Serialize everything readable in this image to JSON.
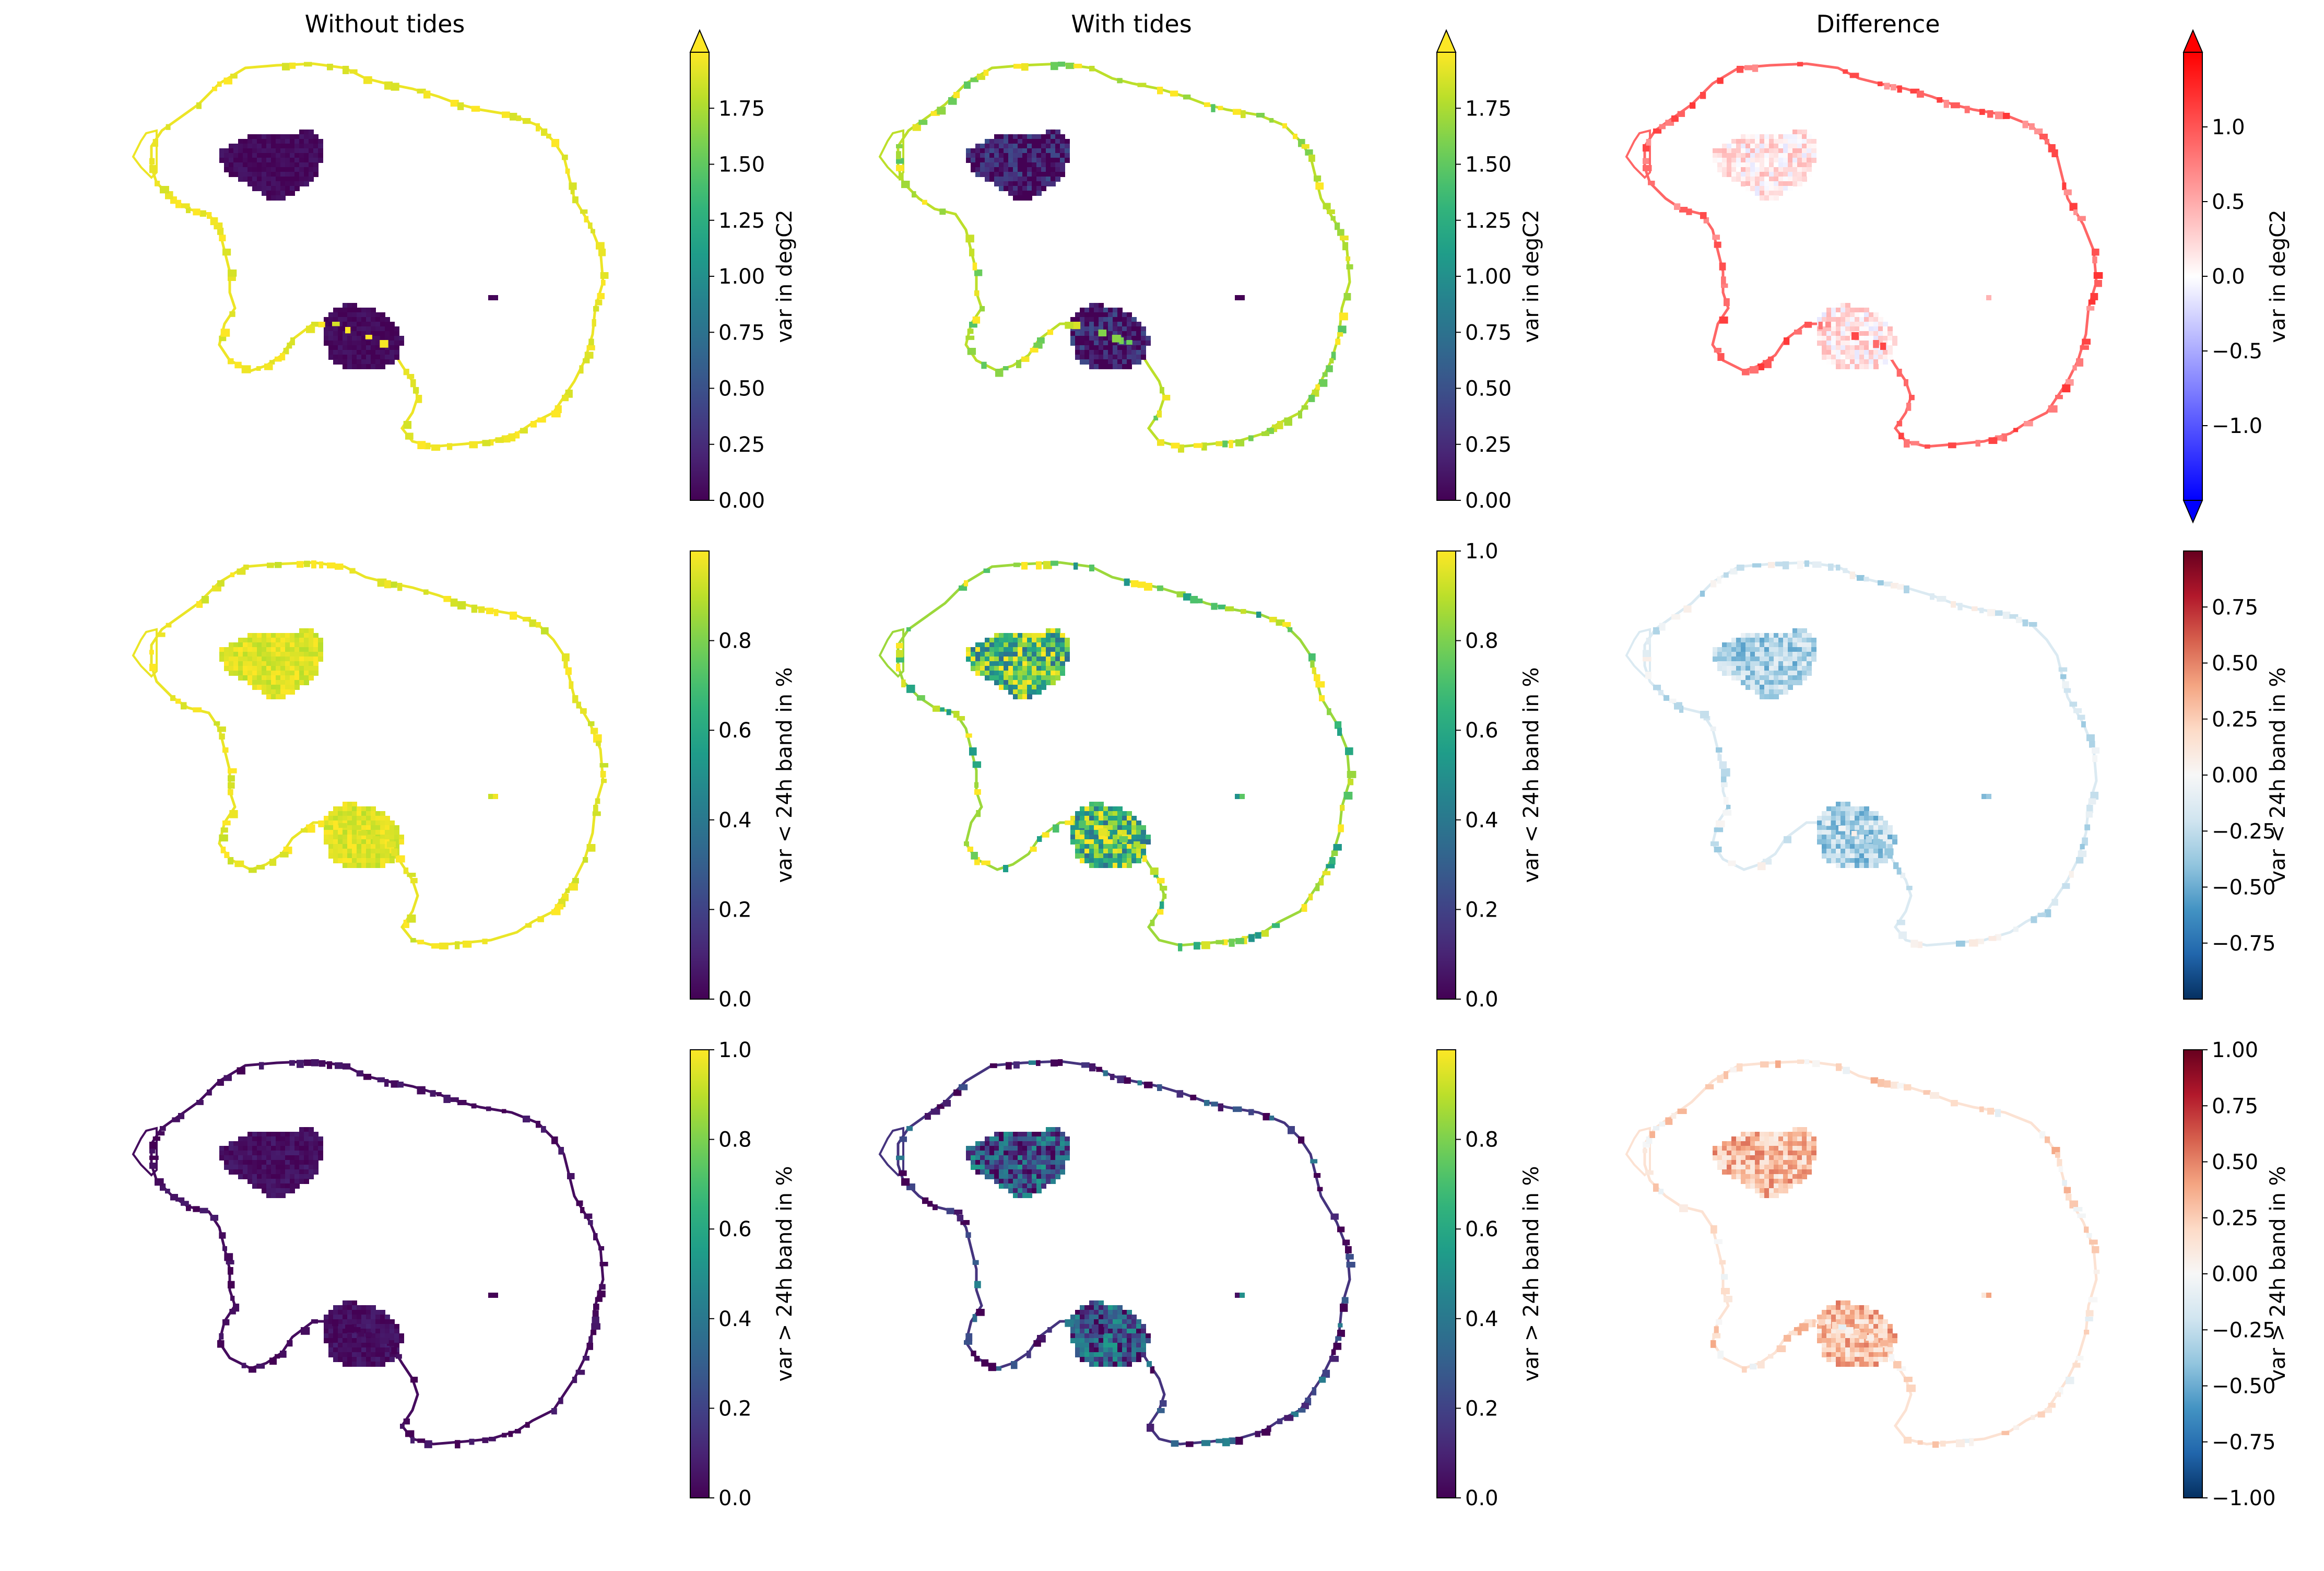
{
  "figure": {
    "column_titles": [
      "Without tides",
      "With tides",
      "Difference"
    ]
  },
  "chart_data": [
    {
      "type": "heatmap",
      "panel": "row1-col1",
      "title": "Without tides",
      "colormap": "viridis",
      "colorbar_label": "var in degC2",
      "clim": [
        0.0,
        2.0
      ],
      "extend": "max",
      "colorbar_ticks": [
        0.0,
        0.25,
        0.5,
        0.75,
        1.0,
        1.25,
        1.5,
        1.75
      ],
      "colorbar_tick_labels": [
        "0.00",
        "0.25",
        "0.50",
        "0.75",
        "1.00",
        "1.25",
        "1.50",
        "1.75"
      ],
      "field": {
        "interior": 0.05,
        "coast": 1.95,
        "noise": 0.08
      }
    },
    {
      "type": "heatmap",
      "panel": "row1-col2",
      "title": "With tides",
      "colormap": "viridis",
      "colorbar_label": "var in degC2",
      "clim": [
        0.0,
        2.0
      ],
      "extend": "max",
      "colorbar_ticks": [
        0.0,
        0.25,
        0.5,
        0.75,
        1.0,
        1.25,
        1.5,
        1.75
      ],
      "colorbar_tick_labels": [
        "0.00",
        "0.25",
        "0.50",
        "0.75",
        "1.00",
        "1.25",
        "1.50",
        "1.75"
      ],
      "field": {
        "interior": 0.15,
        "coast": 1.8,
        "noise": 0.35
      }
    },
    {
      "type": "heatmap",
      "panel": "row1-col3",
      "title": "Difference",
      "colormap": "bwr",
      "colorbar_label": "var in degC2",
      "clim": [
        -1.5,
        1.5
      ],
      "extend": "both",
      "colorbar_ticks": [
        -1.0,
        -0.5,
        0.0,
        0.5,
        1.0
      ],
      "colorbar_tick_labels": [
        "−1.0",
        "−0.5",
        "0.0",
        "0.5",
        "1.0"
      ],
      "field": {
        "interior": 0.15,
        "coast": 0.9,
        "noise": 0.3
      }
    },
    {
      "type": "heatmap",
      "panel": "row2-col1",
      "title": "",
      "colormap": "viridis",
      "colorbar_label": "var < 24h band in %",
      "clim": [
        0.0,
        1.0
      ],
      "extend": "neither",
      "colorbar_ticks": [
        0.0,
        0.2,
        0.4,
        0.6,
        0.8
      ],
      "colorbar_tick_labels": [
        "0.0",
        "0.2",
        "0.4",
        "0.6",
        "0.8"
      ],
      "field": {
        "interior": 0.95,
        "coast": 0.97,
        "noise": 0.06
      }
    },
    {
      "type": "heatmap",
      "panel": "row2-col2",
      "title": "",
      "colormap": "viridis",
      "colorbar_label": "var < 24h band in %",
      "clim": [
        0.0,
        1.0
      ],
      "extend": "neither",
      "colorbar_ticks": [
        0.0,
        0.2,
        0.4,
        0.6,
        0.8,
        1.0
      ],
      "colorbar_tick_labels": [
        "0.0",
        "0.2",
        "0.4",
        "0.6",
        "0.8",
        "1.0"
      ],
      "field": {
        "interior": 0.7,
        "coast": 0.85,
        "noise": 0.35
      }
    },
    {
      "type": "heatmap",
      "panel": "row2-col3",
      "title": "",
      "colormap": "RdBu_r",
      "colorbar_label": "var < 24h band in %",
      "clim": [
        -1.0,
        1.0
      ],
      "extend": "neither",
      "colorbar_ticks": [
        -0.75,
        -0.5,
        -0.25,
        0.0,
        0.25,
        0.5,
        0.75
      ],
      "colorbar_tick_labels": [
        "−0.75",
        "−0.50",
        "−0.25",
        "0.00",
        "0.25",
        "0.50",
        "0.75"
      ],
      "field": {
        "interior": -0.3,
        "coast": -0.15,
        "noise": 0.25
      }
    },
    {
      "type": "heatmap",
      "panel": "row3-col1",
      "title": "",
      "colormap": "viridis",
      "colorbar_label": "var > 24h band in %",
      "clim": [
        0.0,
        1.0
      ],
      "extend": "neither",
      "colorbar_ticks": [
        0.0,
        0.2,
        0.4,
        0.6,
        0.8,
        1.0
      ],
      "colorbar_tick_labels": [
        "0.0",
        "0.2",
        "0.4",
        "0.6",
        "0.8",
        "1.0"
      ],
      "field": {
        "interior": 0.04,
        "coast": 0.03,
        "noise": 0.05
      }
    },
    {
      "type": "heatmap",
      "panel": "row3-col2",
      "title": "",
      "colormap": "viridis",
      "colorbar_label": "var > 24h band in %",
      "clim": [
        0.0,
        1.0
      ],
      "extend": "neither",
      "colorbar_ticks": [
        0.0,
        0.2,
        0.4,
        0.6,
        0.8
      ],
      "colorbar_tick_labels": [
        "0.0",
        "0.2",
        "0.4",
        "0.6",
        "0.8"
      ],
      "field": {
        "interior": 0.25,
        "coast": 0.15,
        "noise": 0.3
      }
    },
    {
      "type": "heatmap",
      "panel": "row3-col3",
      "title": "",
      "colormap": "RdBu_r",
      "colorbar_label": "var > 24h band in %",
      "clim": [
        -1.0,
        1.0
      ],
      "extend": "neither",
      "colorbar_ticks": [
        -1.0,
        -0.75,
        -0.5,
        -0.25,
        0.0,
        0.25,
        0.5,
        0.75,
        1.0
      ],
      "colorbar_tick_labels": [
        "−1.00",
        "−0.75",
        "−0.50",
        "−0.25",
        "0.00",
        "0.25",
        "0.50",
        "0.75",
        "1.00"
      ],
      "field": {
        "interior": 0.3,
        "coast": 0.15,
        "noise": 0.25
      }
    }
  ]
}
